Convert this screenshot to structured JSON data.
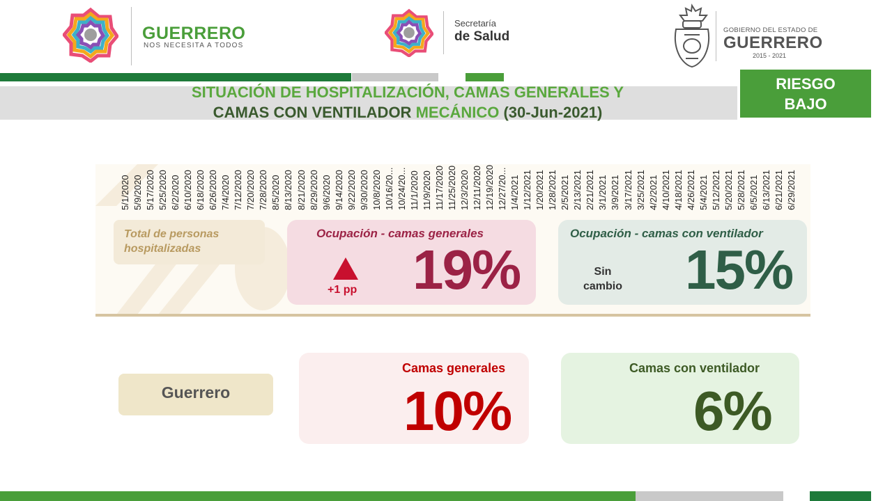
{
  "header": {
    "guerrero_brand": "GUERRERO",
    "guerrero_tagline": "NOS NECESITA A TODOS",
    "salud_line1": "Secretaría",
    "salud_line2": "de Salud",
    "gob_line1": "GOBIERNO DEL ESTADO DE",
    "gob_line2": "GUERRERO",
    "gob_line3": "2015 - 2021"
  },
  "title": {
    "part1": "SITUACIÓN DE HOSPITALIZACIÓN,",
    "part2": "CAMAS GENERALES Y",
    "part3": "CAMAS CON VENTILADOR",
    "part4": "MECÁNICO",
    "part5": "(30-Jun-2021)"
  },
  "risk_badge": {
    "line1": "RIESGO",
    "line2": "BAJO"
  },
  "chart": {
    "x_tick_labels": [
      "5/1/2020",
      "5/9/2020",
      "5/17/2020",
      "5/25/2020",
      "6/2/2020",
      "6/10/2020",
      "6/18/2020",
      "6/26/2020",
      "7/4/2020",
      "7/12/2020",
      "7/20/2020",
      "7/28/2020",
      "8/5/2020",
      "8/13/2020",
      "8/21/2020",
      "8/29/2020",
      "9/6/2020",
      "9/14/2020",
      "9/22/2020",
      "9/30/2020",
      "10/8/2020",
      "10/16/20...",
      "10/24/20...",
      "11/1/2020",
      "11/9/2020",
      "11/17/2020",
      "11/25/2020",
      "12/3/2020",
      "12/11/2020",
      "12/19/2020",
      "12/27/20...",
      "1/4/2021",
      "1/12/2021",
      "1/20/2021",
      "1/28/2021",
      "2/5/2021",
      "2/13/2021",
      "2/21/2021",
      "3/1/2021",
      "3/9/2021",
      "3/17/2021",
      "3/25/2021",
      "4/2/2021",
      "4/10/2021",
      "4/18/2021",
      "4/26/2021",
      "5/4/2021",
      "5/12/2021",
      "5/20/2021",
      "5/28/2021",
      "6/5/2021",
      "6/13/2021",
      "6/21/2021",
      "6/29/2021"
    ]
  },
  "cards": {
    "total_hospitalized": {
      "label": "Total de personas hospitalizadas"
    },
    "general_occupancy": {
      "label": "Ocupación - camas generales",
      "value": "19%",
      "change": "+1 pp",
      "change_color": "#c8102e"
    },
    "ventilator_occupancy": {
      "label": "Ocupación - camas con ventilador",
      "value": "15%",
      "change": "Sin cambio"
    },
    "state_label": "Guerrero",
    "state_general": {
      "label": "Camas generales",
      "value": "10%"
    },
    "state_ventilator": {
      "label": "Camas con ventilador",
      "value": "6%"
    }
  },
  "colors": {
    "green": "#4a9e3a",
    "dark_green": "#2f5e47",
    "maroon": "#9b2245",
    "red": "#c00000",
    "olive_green": "#3d5a25"
  }
}
